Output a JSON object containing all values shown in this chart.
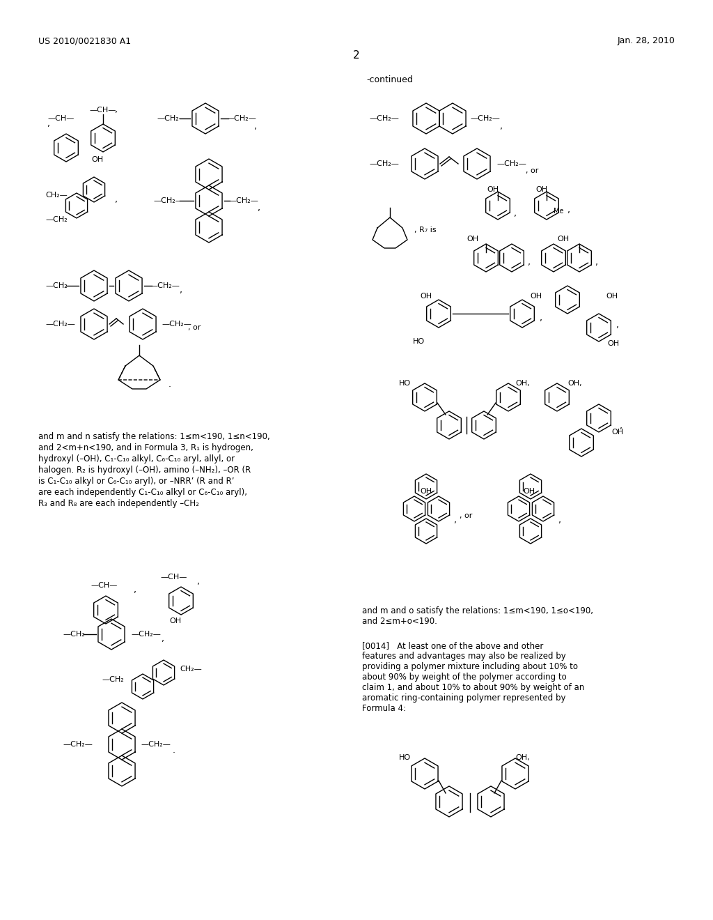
{
  "page_header_left": "US 2010/0021830 A1",
  "page_header_right": "Jan. 28, 2010",
  "page_number": "2",
  "continued_label": "-continued",
  "background_color": "#ffffff",
  "text_color": "#000000",
  "body_text": "and m and n satisfy the relations: 1≤m<190, 1≤n<190, and 2<m+n<190, and in Formula 3, R₁ is hydrogen, hydroxyl (–OH), C₁-C₁₀ alkyl, C₆-C₁₀ aryl, allyl, or halogen. R₂ is hydroxyl (–OH), amino (–NH₂), –OR (R is C₁-C₁₀ alkyl or C₆-C₁₀ aryl), or –NRR’ (R and R’ are each independently C₁-C₁₀ alkyl or C₆-C₁₀ aryl), R₃ and R₈ are each independently –CH₂",
  "body_text2": "and m and o satisfy the relations: 1≤m<190, 1≤o<190, and 2≤m+o<190.",
  "body_text3": "[0014]   At least one of the above and other features and advantages may also be realized by providing a polymer mixture including about 10% to about 90% by weight of the polymer according to claim 1, and about 10% to about 90% by weight of an aromatic ring-containing polymer represented by Formula 4:"
}
